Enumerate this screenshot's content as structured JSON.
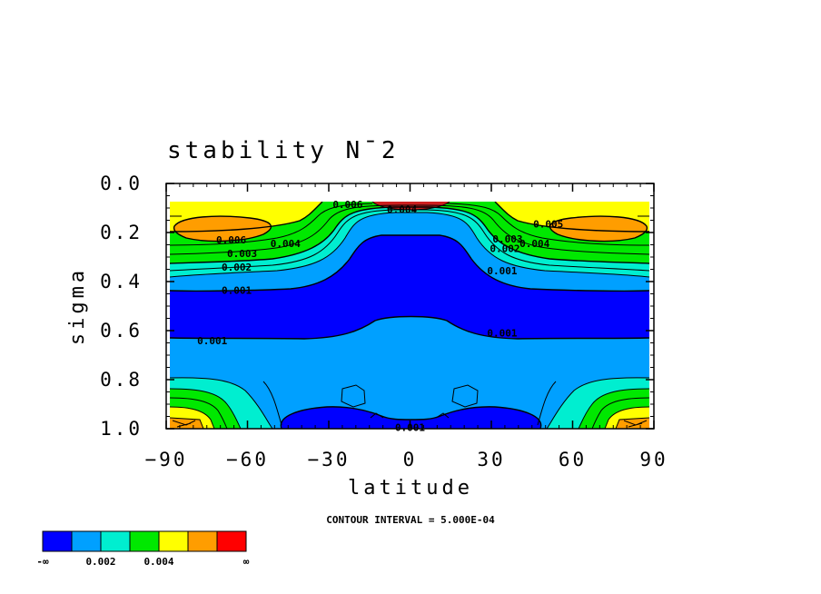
{
  "chart_data": {
    "type": "contour",
    "title": "stability N¯2",
    "xlabel": "latitude",
    "ylabel": "sigma",
    "xlim": [
      -90,
      90
    ],
    "ylim": [
      0.0,
      1.0
    ],
    "y_inverted": true,
    "x_ticks": [
      "−90",
      "−60",
      "−30",
      "0",
      "30",
      "60",
      "90"
    ],
    "x_tick_values": [
      -90,
      -60,
      -30,
      0,
      30,
      60,
      90
    ],
    "y_ticks": [
      "0.0",
      "0.2",
      "0.4",
      "0.6",
      "0.8",
      "1.0"
    ],
    "y_tick_values": [
      0.0,
      0.2,
      0.4,
      0.6,
      0.8,
      1.0
    ],
    "contour_interval_note": "CONTOUR INTERVAL = 5.000E-04",
    "contour_interval": 0.0005,
    "contour_labels": [
      {
        "text": "0.006",
        "lat": -66,
        "sigma": 0.23
      },
      {
        "text": "0.004",
        "lat": -46,
        "sigma": 0.245
      },
      {
        "text": "0.003",
        "lat": -62,
        "sigma": 0.285
      },
      {
        "text": "0.002",
        "lat": -64,
        "sigma": 0.34
      },
      {
        "text": "0.001",
        "lat": -64,
        "sigma": 0.435
      },
      {
        "text": "0.001",
        "lat": -73,
        "sigma": 0.64
      },
      {
        "text": "0.006",
        "lat": -23,
        "sigma": 0.085
      },
      {
        "text": "0.004",
        "lat": -3,
        "sigma": 0.105
      },
      {
        "text": "0.005",
        "lat": 51,
        "sigma": 0.165
      },
      {
        "text": "0.003",
        "lat": 36,
        "sigma": 0.225
      },
      {
        "text": "0.004",
        "lat": 46,
        "sigma": 0.245
      },
      {
        "text": "0.002",
        "lat": 35,
        "sigma": 0.265
      },
      {
        "text": "0.001",
        "lat": 34,
        "sigma": 0.355
      },
      {
        "text": "0.001",
        "lat": 34,
        "sigma": 0.61
      },
      {
        "text": "0.001",
        "lat": 0,
        "sigma": 0.995
      }
    ],
    "colorbar": {
      "colors": [
        "#0000ff",
        "#00a0ff",
        "#00eed0",
        "#00e800",
        "#ffff00",
        "#ff9d00",
        "#ff0000"
      ],
      "labels": [
        "-∞",
        "0.002",
        "0.004",
        "∞"
      ]
    }
  }
}
